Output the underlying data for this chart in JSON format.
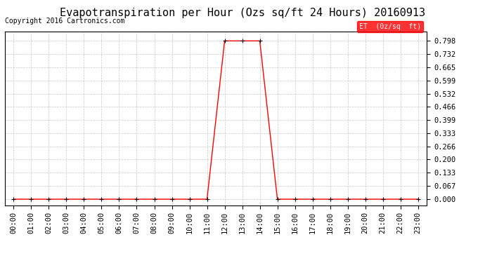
{
  "title": "Evapotranspiration per Hour (Ozs sq/ft 24 Hours) 20160913",
  "copyright": "Copyright 2016 Cartronics.com",
  "legend_label": "ET  (0z/sq  ft)",
  "legend_bg": "#ff0000",
  "legend_text_color": "#ffffff",
  "line_color": "#ff0000",
  "marker": "+",
  "marker_color": "#000000",
  "background_color": "#ffffff",
  "grid_color": "#c8c8c8",
  "hours": [
    "00:00",
    "01:00",
    "02:00",
    "03:00",
    "04:00",
    "05:00",
    "06:00",
    "07:00",
    "08:00",
    "09:00",
    "10:00",
    "11:00",
    "12:00",
    "13:00",
    "14:00",
    "15:00",
    "16:00",
    "17:00",
    "18:00",
    "19:00",
    "20:00",
    "21:00",
    "22:00",
    "23:00"
  ],
  "values": [
    0.0,
    0.0,
    0.0,
    0.0,
    0.0,
    0.0,
    0.0,
    0.0,
    0.0,
    0.0,
    0.0,
    0.0,
    0.798,
    0.798,
    0.798,
    0.0,
    0.0,
    0.0,
    0.0,
    0.0,
    0.0,
    0.0,
    0.0,
    0.0
  ],
  "yticks": [
    0.0,
    0.067,
    0.133,
    0.2,
    0.266,
    0.333,
    0.399,
    0.466,
    0.532,
    0.599,
    0.665,
    0.732,
    0.798
  ],
  "ylim": [
    -0.03,
    0.845
  ],
  "title_fontsize": 11,
  "copyright_fontsize": 7,
  "tick_fontsize": 7.5
}
